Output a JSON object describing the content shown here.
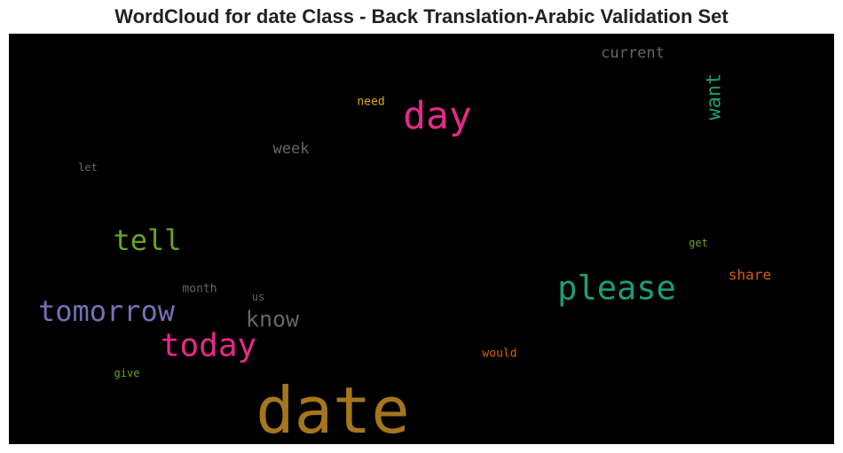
{
  "title": "WordCloud for date Class - Back Translation-Arabic Validation Set",
  "chart_data": {
    "type": "wordcloud",
    "title": "WordCloud for date Class - Back Translation-Arabic Validation Set",
    "background": "#000000",
    "words": [
      {
        "text": "date",
        "weight": 1.0,
        "color": "#a6761d",
        "orientation": "horizontal"
      },
      {
        "text": "day",
        "weight": 0.6,
        "color": "#e7298a",
        "orientation": "horizontal"
      },
      {
        "text": "please",
        "weight": 0.52,
        "color": "#1b9e77",
        "orientation": "horizontal"
      },
      {
        "text": "today",
        "weight": 0.5,
        "color": "#e7298a",
        "orientation": "horizontal"
      },
      {
        "text": "tomorrow",
        "weight": 0.44,
        "color": "#7570b3",
        "orientation": "horizontal"
      },
      {
        "text": "tell",
        "weight": 0.44,
        "color": "#66a61e",
        "orientation": "horizontal"
      },
      {
        "text": "know",
        "weight": 0.35,
        "color": "#666666",
        "orientation": "horizontal"
      },
      {
        "text": "want",
        "weight": 0.3,
        "color": "#1b9e77",
        "orientation": "vertical"
      },
      {
        "text": "current",
        "weight": 0.23,
        "color": "#666666",
        "orientation": "horizontal"
      },
      {
        "text": "week",
        "weight": 0.23,
        "color": "#666666",
        "orientation": "horizontal"
      },
      {
        "text": "share",
        "weight": 0.22,
        "color": "#d95f02",
        "orientation": "horizontal"
      },
      {
        "text": "need",
        "weight": 0.18,
        "color": "#e6ab02",
        "orientation": "horizontal"
      },
      {
        "text": "month",
        "weight": 0.18,
        "color": "#666666",
        "orientation": "horizontal"
      },
      {
        "text": "would",
        "weight": 0.18,
        "color": "#d95f02",
        "orientation": "horizontal"
      },
      {
        "text": "give",
        "weight": 0.17,
        "color": "#66a61e",
        "orientation": "horizontal"
      },
      {
        "text": "get",
        "weight": 0.17,
        "color": "#66a61e",
        "orientation": "horizontal"
      },
      {
        "text": "us",
        "weight": 0.16,
        "color": "#666666",
        "orientation": "horizontal"
      },
      {
        "text": "let",
        "weight": 0.16,
        "color": "#666666",
        "orientation": "horizontal"
      }
    ]
  }
}
